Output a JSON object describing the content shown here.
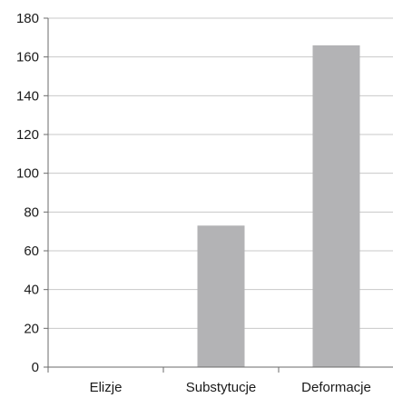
{
  "chart_data": {
    "type": "bar",
    "title": "",
    "xlabel": "",
    "ylabel": "",
    "categories": [
      "Elizje",
      "Substytucje",
      "Deformacje"
    ],
    "values": [
      0,
      73,
      166
    ],
    "ylim": [
      0,
      180
    ],
    "yticks": [
      0,
      20,
      40,
      60,
      80,
      100,
      120,
      140,
      160,
      180
    ],
    "ytick_labels": [
      "0",
      "20",
      "40",
      "60",
      "80",
      "100",
      "120",
      "140",
      "160",
      "180"
    ],
    "grid": true,
    "legend": "none",
    "colors": {
      "bar": "#b3b3b5",
      "grid": "#c8c8c8",
      "axis": "#6b6b6b",
      "text": "#1a1a1a"
    }
  }
}
